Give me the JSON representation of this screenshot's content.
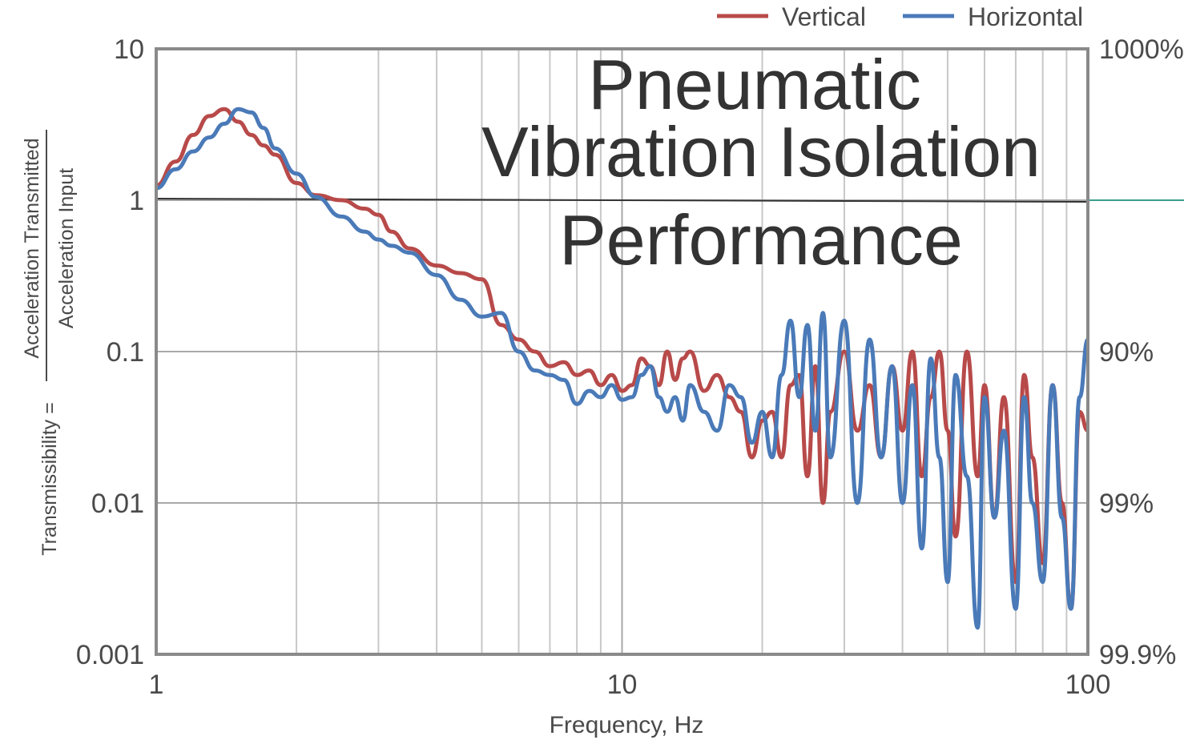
{
  "chart_data": {
    "type": "line",
    "title": [
      "Pneumatic",
      "Vibration Isolation",
      "Performance"
    ],
    "xlabel": "Frequency, Hz",
    "ylabel": {
      "prefix": "Transmissibility =",
      "numerator": "Acceleration Transmitted",
      "denominator": "Acceleration Input"
    },
    "x_scale": "log",
    "y_scale": "log",
    "xlim": [
      1,
      100
    ],
    "ylim": [
      0.001,
      10
    ],
    "x_ticks": [
      {
        "value": 1,
        "label": "1"
      },
      {
        "value": 10,
        "label": "10"
      },
      {
        "value": 100,
        "label": "100"
      }
    ],
    "y_ticks": [
      {
        "value": 10,
        "label": "10"
      },
      {
        "value": 1,
        "label": "1"
      },
      {
        "value": 0.1,
        "label": "0.1"
      },
      {
        "value": 0.01,
        "label": "0.01"
      },
      {
        "value": 0.001,
        "label": "0.001"
      }
    ],
    "y2_ticks": [
      {
        "value": 10,
        "label": "1000%"
      },
      {
        "value": 0.1,
        "label": "90%"
      },
      {
        "value": 0.01,
        "label": "99%"
      },
      {
        "value": 0.001,
        "label": "99.9%"
      }
    ],
    "reference_line": 1,
    "grid": true,
    "legend_position": "top-right",
    "series": [
      {
        "name": "Vertical",
        "color": "#b84a4a",
        "x": [
          1.0,
          1.1,
          1.2,
          1.3,
          1.4,
          1.5,
          1.6,
          1.7,
          1.8,
          2.0,
          2.2,
          2.5,
          2.8,
          3.0,
          3.2,
          3.5,
          4.0,
          4.5,
          5.0,
          5.5,
          6.0,
          6.5,
          7.0,
          7.5,
          8.0,
          8.5,
          9.0,
          9.5,
          10.0,
          10.5,
          11.0,
          11.5,
          12.0,
          12.5,
          13.0,
          13.5,
          14.0,
          15.0,
          16.0,
          17.0,
          18.0,
          19.0,
          20.0,
          21.0,
          22.0,
          23.0,
          24.0,
          25.0,
          26.0,
          27.0,
          28.0,
          30.0,
          32.0,
          34.0,
          36.0,
          38.0,
          40.0,
          42.0,
          44.0,
          46.0,
          48.0,
          50.0,
          52.0,
          55.0,
          58.0,
          60.0,
          63.0,
          66.0,
          70.0,
          73.0,
          76.0,
          80.0,
          84.0,
          88.0,
          92.0,
          96.0,
          100.0
        ],
        "values": [
          1.25,
          1.8,
          2.7,
          3.6,
          4.0,
          3.3,
          2.7,
          2.3,
          2.0,
          1.3,
          1.08,
          1.0,
          0.88,
          0.8,
          0.62,
          0.48,
          0.37,
          0.33,
          0.3,
          0.15,
          0.12,
          0.1,
          0.08,
          0.085,
          0.07,
          0.075,
          0.06,
          0.07,
          0.055,
          0.06,
          0.09,
          0.08,
          0.06,
          0.1,
          0.065,
          0.09,
          0.1,
          0.055,
          0.07,
          0.05,
          0.04,
          0.02,
          0.035,
          0.04,
          0.02,
          0.06,
          0.07,
          0.015,
          0.08,
          0.01,
          0.04,
          0.1,
          0.03,
          0.06,
          0.02,
          0.08,
          0.03,
          0.1,
          0.015,
          0.05,
          0.1,
          0.03,
          0.006,
          0.1,
          0.015,
          0.06,
          0.008,
          0.05,
          0.003,
          0.07,
          0.02,
          0.004,
          0.06,
          0.01,
          0.002,
          0.04,
          0.03
        ]
      },
      {
        "name": "Horizontal",
        "color": "#4a7ab8",
        "x": [
          1.0,
          1.1,
          1.2,
          1.3,
          1.4,
          1.5,
          1.6,
          1.7,
          1.8,
          2.0,
          2.2,
          2.5,
          2.8,
          3.0,
          3.2,
          3.5,
          4.0,
          4.5,
          5.0,
          5.5,
          6.0,
          6.5,
          7.0,
          7.5,
          8.0,
          8.5,
          9.0,
          9.5,
          10.0,
          10.5,
          11.0,
          11.5,
          12.0,
          12.5,
          13.0,
          13.5,
          14.0,
          15.0,
          16.0,
          17.0,
          18.0,
          19.0,
          20.0,
          21.0,
          22.0,
          23.0,
          24.0,
          25.0,
          26.0,
          27.0,
          28.0,
          30.0,
          32.0,
          34.0,
          36.0,
          38.0,
          40.0,
          42.0,
          44.0,
          46.0,
          48.0,
          50.0,
          52.0,
          55.0,
          58.0,
          60.0,
          63.0,
          66.0,
          70.0,
          73.0,
          76.0,
          80.0,
          84.0,
          88.0,
          92.0,
          96.0,
          100.0
        ],
        "values": [
          1.2,
          1.6,
          2.1,
          2.6,
          3.2,
          4.0,
          3.8,
          3.0,
          2.2,
          1.5,
          1.05,
          0.78,
          0.62,
          0.55,
          0.5,
          0.45,
          0.32,
          0.22,
          0.17,
          0.18,
          0.1,
          0.075,
          0.07,
          0.065,
          0.045,
          0.055,
          0.05,
          0.06,
          0.048,
          0.05,
          0.07,
          0.08,
          0.05,
          0.04,
          0.05,
          0.035,
          0.06,
          0.04,
          0.03,
          0.06,
          0.05,
          0.025,
          0.04,
          0.02,
          0.07,
          0.16,
          0.05,
          0.15,
          0.03,
          0.18,
          0.02,
          0.16,
          0.01,
          0.12,
          0.02,
          0.08,
          0.01,
          0.06,
          0.005,
          0.09,
          0.02,
          0.003,
          0.07,
          0.015,
          0.0015,
          0.05,
          0.008,
          0.03,
          0.002,
          0.05,
          0.01,
          0.003,
          0.06,
          0.008,
          0.002,
          0.05,
          0.12
        ]
      }
    ]
  }
}
